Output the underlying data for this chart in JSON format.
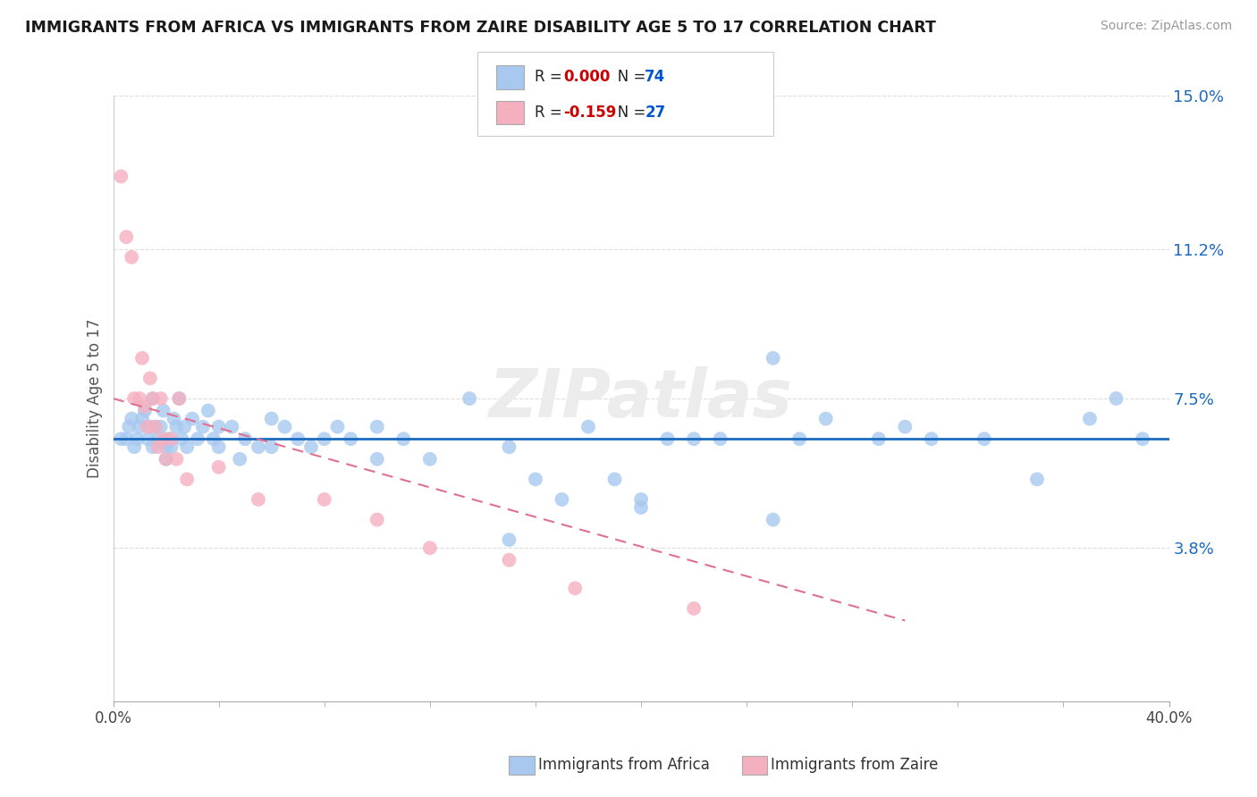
{
  "title": "IMMIGRANTS FROM AFRICA VS IMMIGRANTS FROM ZAIRE DISABILITY AGE 5 TO 17 CORRELATION CHART",
  "source": "Source: ZipAtlas.com",
  "ylabel": "Disability Age 5 to 17",
  "xlabel_africa": "Immigrants from Africa",
  "xlabel_zaire": "Immigrants from Zaire",
  "xlim": [
    0.0,
    0.4
  ],
  "ylim": [
    0.0,
    0.15
  ],
  "yticks": [
    0.038,
    0.075,
    0.112,
    0.15
  ],
  "ytick_labels": [
    "3.8%",
    "7.5%",
    "11.2%",
    "15.0%"
  ],
  "color_africa": "#a8c8f0",
  "color_zaire": "#f5b0c0",
  "line_color_africa": "#1a6bbf",
  "line_color_zaire": "#e07090",
  "R_africa": 0.0,
  "N_africa": 74,
  "R_zaire": -0.159,
  "N_zaire": 27,
  "legend_R_color": "#cc0000",
  "legend_N_color": "#0055cc",
  "africa_x": [
    0.003,
    0.005,
    0.006,
    0.007,
    0.008,
    0.009,
    0.01,
    0.011,
    0.012,
    0.013,
    0.014,
    0.015,
    0.015,
    0.016,
    0.017,
    0.018,
    0.019,
    0.02,
    0.021,
    0.022,
    0.023,
    0.024,
    0.025,
    0.026,
    0.027,
    0.028,
    0.03,
    0.032,
    0.034,
    0.036,
    0.038,
    0.04,
    0.045,
    0.048,
    0.05,
    0.055,
    0.06,
    0.065,
    0.07,
    0.075,
    0.08,
    0.085,
    0.09,
    0.1,
    0.11,
    0.12,
    0.135,
    0.15,
    0.16,
    0.17,
    0.18,
    0.19,
    0.2,
    0.21,
    0.22,
    0.23,
    0.25,
    0.26,
    0.27,
    0.29,
    0.3,
    0.31,
    0.33,
    0.35,
    0.37,
    0.38,
    0.39,
    0.15,
    0.2,
    0.25,
    0.1,
    0.06,
    0.04,
    0.02
  ],
  "africa_y": [
    0.065,
    0.065,
    0.068,
    0.07,
    0.063,
    0.065,
    0.068,
    0.07,
    0.072,
    0.065,
    0.068,
    0.063,
    0.075,
    0.068,
    0.065,
    0.068,
    0.072,
    0.06,
    0.065,
    0.063,
    0.07,
    0.068,
    0.075,
    0.065,
    0.068,
    0.063,
    0.07,
    0.065,
    0.068,
    0.072,
    0.065,
    0.063,
    0.068,
    0.06,
    0.065,
    0.063,
    0.07,
    0.068,
    0.065,
    0.063,
    0.065,
    0.068,
    0.065,
    0.068,
    0.065,
    0.06,
    0.075,
    0.063,
    0.055,
    0.05,
    0.068,
    0.055,
    0.048,
    0.065,
    0.065,
    0.065,
    0.085,
    0.065,
    0.07,
    0.065,
    0.068,
    0.065,
    0.065,
    0.055,
    0.07,
    0.075,
    0.065,
    0.04,
    0.05,
    0.045,
    0.06,
    0.063,
    0.068,
    0.063
  ],
  "zaire_x": [
    0.003,
    0.005,
    0.007,
    0.008,
    0.01,
    0.011,
    0.012,
    0.013,
    0.014,
    0.015,
    0.016,
    0.017,
    0.018,
    0.019,
    0.02,
    0.022,
    0.024,
    0.025,
    0.028,
    0.04,
    0.055,
    0.08,
    0.1,
    0.12,
    0.15,
    0.175,
    0.22
  ],
  "zaire_y": [
    0.13,
    0.115,
    0.11,
    0.075,
    0.075,
    0.085,
    0.073,
    0.068,
    0.08,
    0.075,
    0.068,
    0.063,
    0.075,
    0.065,
    0.06,
    0.065,
    0.06,
    0.075,
    0.055,
    0.058,
    0.05,
    0.05,
    0.045,
    0.038,
    0.035,
    0.028,
    0.023
  ],
  "zaire_line_x0": 0.0,
  "zaire_line_y0": 0.075,
  "zaire_line_x1": 0.3,
  "zaire_line_y1": 0.02
}
